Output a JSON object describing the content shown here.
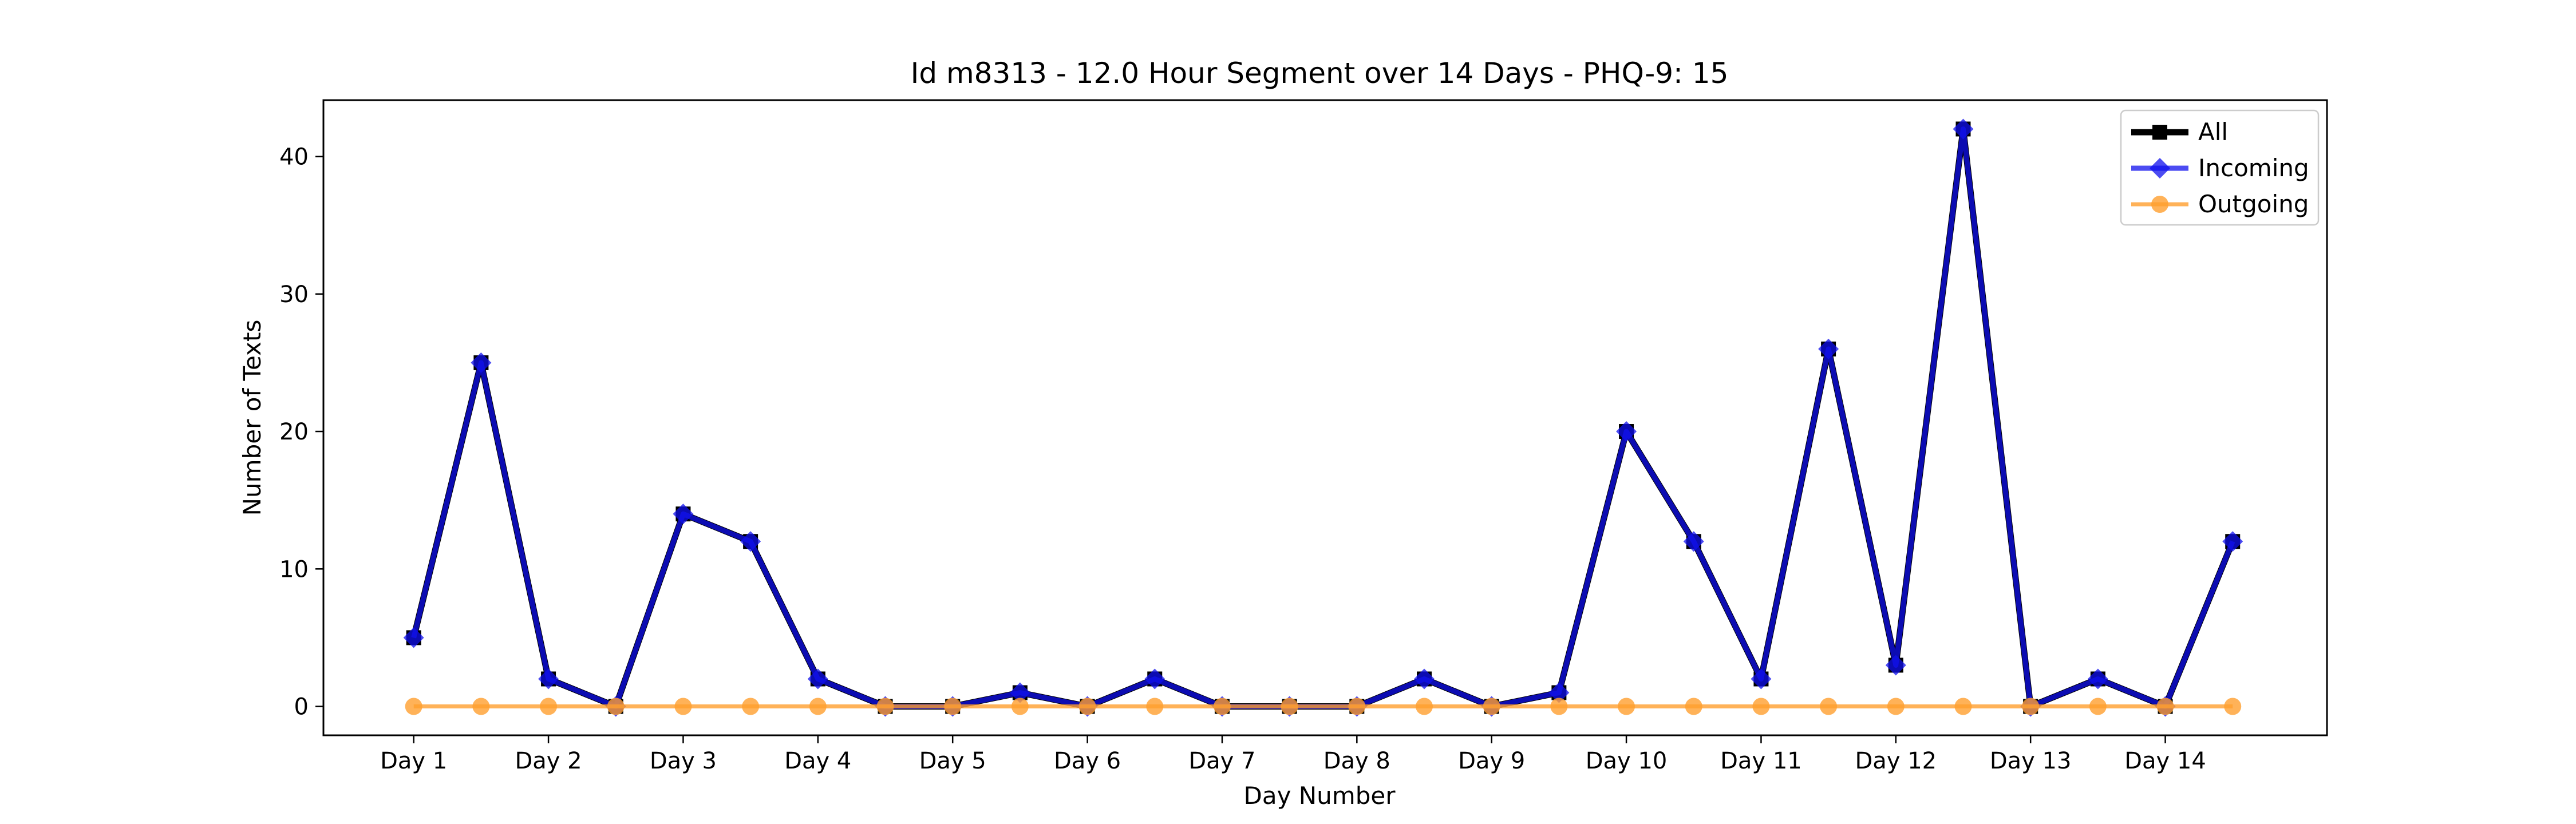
{
  "chart_data": {
    "type": "line",
    "title": "Id m8313 - 12.0 Hour Segment over 14 Days - PHQ-9: 15",
    "xlabel": "Day Number",
    "ylabel": "Number of Texts",
    "x": [
      1,
      1.5,
      2,
      2.5,
      3,
      3.5,
      4,
      4.5,
      5,
      5.5,
      6,
      6.5,
      7,
      7.5,
      8,
      8.5,
      9,
      9.5,
      10,
      10.5,
      11,
      11.5,
      12,
      12.5,
      13,
      13.5,
      14,
      14.5
    ],
    "x_ticks": [
      1,
      2,
      3,
      4,
      5,
      6,
      7,
      8,
      9,
      10,
      11,
      12,
      13,
      14
    ],
    "x_tick_labels": [
      "Day 1",
      "Day 2",
      "Day 3",
      "Day 4",
      "Day 5",
      "Day 6",
      "Day 7",
      "Day 8",
      "Day 9",
      "Day 10",
      "Day 11",
      "Day 12",
      "Day 13",
      "Day 14"
    ],
    "xlim": [
      0.33,
      15.2
    ],
    "ylim": [
      -2.1,
      44.1
    ],
    "y_ticks": [
      0,
      10,
      20,
      30,
      40
    ],
    "grid": false,
    "legend_position": "top-right",
    "series": [
      {
        "name": "All",
        "color": "#000000",
        "marker": "square",
        "values": [
          5,
          25,
          2,
          0,
          14,
          12,
          2,
          0,
          0,
          1,
          0,
          2,
          0,
          0,
          0,
          2,
          0,
          1,
          20,
          12,
          2,
          26,
          3,
          42,
          0,
          2,
          0,
          12
        ]
      },
      {
        "name": "Incoming",
        "color": "#1010ee",
        "marker": "diamond",
        "values": [
          5,
          25,
          2,
          0,
          14,
          12,
          2,
          0,
          0,
          1,
          0,
          2,
          0,
          0,
          0,
          2,
          0,
          1,
          20,
          12,
          2,
          26,
          3,
          42,
          0,
          2,
          0,
          12
        ]
      },
      {
        "name": "Outgoing",
        "color": "#ff9f2e",
        "marker": "circle",
        "values": [
          0,
          0,
          0,
          0,
          0,
          0,
          0,
          0,
          0,
          0,
          0,
          0,
          0,
          0,
          0,
          0,
          0,
          0,
          0,
          0,
          0,
          0,
          0,
          0,
          0,
          0,
          0,
          0
        ]
      }
    ]
  }
}
